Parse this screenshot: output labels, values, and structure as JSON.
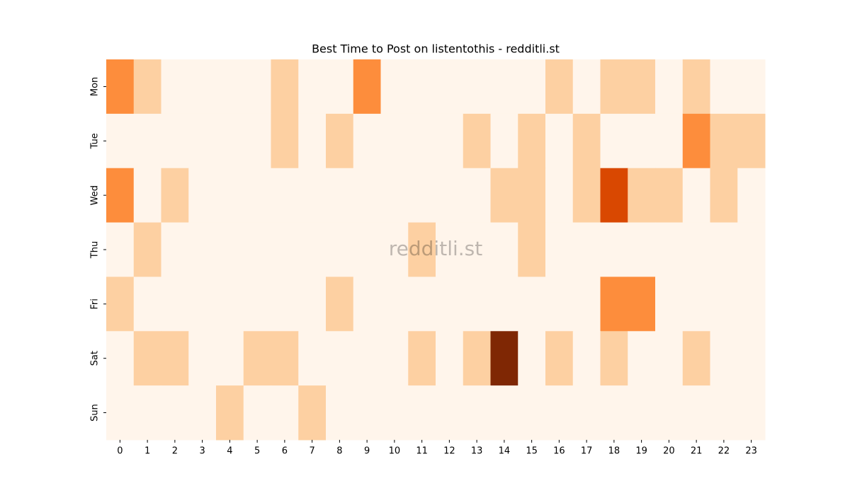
{
  "chart_data": {
    "type": "heatmap",
    "title": "Best Time to Post on listentothis - redditli.st",
    "watermark": "redditli.st",
    "categories": [
      "0",
      "1",
      "2",
      "3",
      "4",
      "5",
      "6",
      "7",
      "8",
      "9",
      "10",
      "11",
      "12",
      "13",
      "14",
      "15",
      "16",
      "17",
      "18",
      "19",
      "20",
      "21",
      "22",
      "23"
    ],
    "rows": [
      "Mon",
      "Tue",
      "Wed",
      "Thu",
      "Fri",
      "Sat",
      "Sun"
    ],
    "values": [
      [
        2,
        1,
        0,
        0,
        0,
        0,
        1,
        0,
        0,
        2,
        0,
        0,
        0,
        0,
        0,
        0,
        1,
        0,
        1,
        1,
        0,
        1,
        0,
        0
      ],
      [
        0,
        0,
        0,
        0,
        0,
        0,
        1,
        0,
        1,
        0,
        0,
        0,
        0,
        1,
        0,
        1,
        0,
        1,
        0,
        0,
        0,
        2,
        1,
        1
      ],
      [
        2,
        0,
        1,
        0,
        0,
        0,
        0,
        0,
        0,
        0,
        0,
        0,
        0,
        0,
        1,
        1,
        0,
        1,
        3,
        1,
        1,
        0,
        1,
        0
      ],
      [
        0,
        1,
        0,
        0,
        0,
        0,
        0,
        0,
        0,
        0,
        0,
        1,
        0,
        0,
        0,
        1,
        0,
        0,
        0,
        0,
        0,
        0,
        0,
        0
      ],
      [
        1,
        0,
        0,
        0,
        0,
        0,
        0,
        0,
        1,
        0,
        0,
        0,
        0,
        0,
        0,
        0,
        0,
        0,
        2,
        2,
        0,
        0,
        0,
        0
      ],
      [
        0,
        1,
        1,
        0,
        0,
        1,
        1,
        0,
        0,
        0,
        0,
        1,
        0,
        1,
        4,
        0,
        1,
        0,
        1,
        0,
        0,
        1,
        0,
        0
      ],
      [
        0,
        0,
        0,
        0,
        1,
        0,
        0,
        1,
        0,
        0,
        0,
        0,
        0,
        0,
        0,
        0,
        0,
        0,
        0,
        0,
        0,
        0,
        0,
        0
      ]
    ],
    "zlim": [
      0,
      4
    ],
    "colorscale": [
      "#fff5eb",
      "#fdd0a2",
      "#fd8d3c",
      "#d94801",
      "#7f2704"
    ]
  }
}
